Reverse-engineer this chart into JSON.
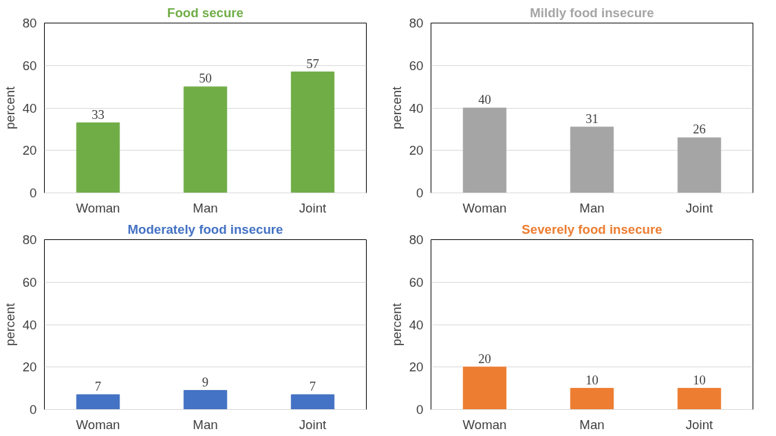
{
  "chart_data": [
    {
      "type": "bar",
      "title": "Food secure",
      "ylabel": "percent",
      "categories": [
        "Woman",
        "Man",
        "Joint"
      ],
      "values": [
        33,
        50,
        57
      ],
      "color": "#70ad47",
      "ylim": [
        0,
        80
      ],
      "yticks": [
        0,
        20,
        40,
        60,
        80
      ],
      "grid": "y",
      "data_labels": true
    },
    {
      "type": "bar",
      "title": "Mildly food insecure",
      "ylabel": "percent",
      "categories": [
        "Woman",
        "Man",
        "Joint"
      ],
      "values": [
        40,
        31,
        26
      ],
      "color": "#a5a5a5",
      "ylim": [
        0,
        80
      ],
      "yticks": [
        0,
        20,
        40,
        60,
        80
      ],
      "grid": "y",
      "data_labels": true
    },
    {
      "type": "bar",
      "title": "Moderately food insecure",
      "ylabel": "percent",
      "categories": [
        "Woman",
        "Man",
        "Joint"
      ],
      "values": [
        7,
        9,
        7
      ],
      "color": "#4472c4",
      "ylim": [
        0,
        80
      ],
      "yticks": [
        0,
        20,
        40,
        60,
        80
      ],
      "grid": "y",
      "data_labels": true
    },
    {
      "type": "bar",
      "title": "Severely food insecure",
      "ylabel": "percent",
      "categories": [
        "Woman",
        "Man",
        "Joint"
      ],
      "values": [
        20,
        10,
        10
      ],
      "color": "#ed7d31",
      "ylim": [
        0,
        80
      ],
      "yticks": [
        0,
        20,
        40,
        60,
        80
      ],
      "grid": "y",
      "data_labels": true
    }
  ]
}
